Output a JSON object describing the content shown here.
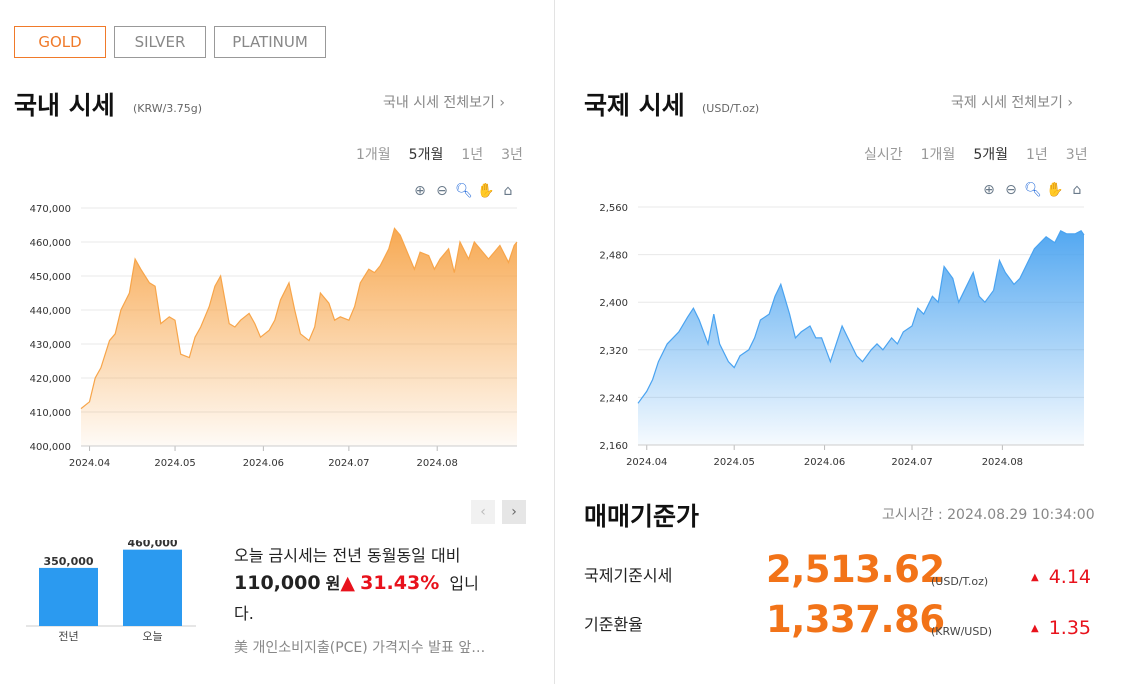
{
  "tabs": [
    {
      "label": "GOLD",
      "active": true
    },
    {
      "label": "SILVER",
      "active": false
    },
    {
      "label": "PLATINUM",
      "active": false
    }
  ],
  "domestic": {
    "title": "국내 시세",
    "unit": "(KRW/3.75g)",
    "more": "국내 시세 전체보기",
    "periods": [
      "1개월",
      "5개월",
      "1년",
      "3년"
    ],
    "active_period": "5개월",
    "tools": [
      "zoom-in-icon",
      "zoom-out-icon",
      "magnify-icon",
      "pan-hand-icon",
      "home-icon"
    ],
    "fill_color": "#f7a54a"
  },
  "international": {
    "title": "국제 시세",
    "unit": "(USD/T.oz)",
    "more": "국제 시세 전체보기",
    "periods": [
      "실시간",
      "1개월",
      "5개월",
      "1년",
      "3년"
    ],
    "active_period": "5개월",
    "tools": [
      "zoom-in-icon",
      "zoom-out-icon",
      "magnify-icon",
      "pan-hand-icon",
      "home-icon"
    ],
    "fill_color": "#4aa3f0"
  },
  "chart_data": [
    {
      "type": "area",
      "ylim": [
        400000,
        470000
      ],
      "yticks": [
        "400,000",
        "410,000",
        "420,000",
        "430,000",
        "440,000",
        "450,000",
        "460,000",
        "470,000"
      ],
      "xticks": [
        "2024.04",
        "2024.05",
        "2024.06",
        "2024.07",
        "2024.08"
      ],
      "x": [
        "2024.03.29",
        "2024.04.01",
        "2024.04.03",
        "2024.04.05",
        "2024.04.08",
        "2024.04.10",
        "2024.04.12",
        "2024.04.15",
        "2024.04.17",
        "2024.04.19",
        "2024.04.22",
        "2024.04.24",
        "2024.04.26",
        "2024.04.29",
        "2024.05.01",
        "2024.05.03",
        "2024.05.06",
        "2024.05.08",
        "2024.05.10",
        "2024.05.13",
        "2024.05.15",
        "2024.05.17",
        "2024.05.20",
        "2024.05.22",
        "2024.05.24",
        "2024.05.27",
        "2024.05.29",
        "2024.05.31",
        "2024.06.03",
        "2024.06.05",
        "2024.06.07",
        "2024.06.10",
        "2024.06.12",
        "2024.06.14",
        "2024.06.17",
        "2024.06.19",
        "2024.06.21",
        "2024.06.24",
        "2024.06.26",
        "2024.06.28",
        "2024.07.01",
        "2024.07.03",
        "2024.07.05",
        "2024.07.08",
        "2024.07.10",
        "2024.07.12",
        "2024.07.15",
        "2024.07.17",
        "2024.07.19",
        "2024.07.22",
        "2024.07.24",
        "2024.07.26",
        "2024.07.29",
        "2024.07.31",
        "2024.08.02",
        "2024.08.05",
        "2024.08.07",
        "2024.08.09",
        "2024.08.12",
        "2024.08.14",
        "2024.08.16",
        "2024.08.19",
        "2024.08.21",
        "2024.08.23",
        "2024.08.26",
        "2024.08.28",
        "2024.08.29"
      ],
      "values": [
        411000,
        413000,
        420000,
        423000,
        431000,
        433000,
        440000,
        445000,
        455000,
        452000,
        448000,
        447000,
        436000,
        438000,
        437000,
        427000,
        426000,
        432000,
        435000,
        441000,
        447000,
        450000,
        436000,
        435000,
        437000,
        439000,
        436000,
        432000,
        434000,
        437000,
        443000,
        448000,
        440000,
        433000,
        431000,
        435000,
        445000,
        442000,
        437000,
        438000,
        437000,
        441000,
        448000,
        452000,
        451000,
        453000,
        458000,
        464000,
        462000,
        456000,
        452000,
        457000,
        456000,
        452000,
        455000,
        458000,
        451000,
        460000,
        455000,
        460000,
        458000,
        455000,
        457000,
        459000,
        454000,
        459000,
        460000
      ],
      "fill_color": "#f7a54a"
    },
    {
      "type": "area",
      "ylim": [
        2160,
        2560
      ],
      "yticks": [
        "2,160",
        "2,240",
        "2,320",
        "2,400",
        "2,480",
        "2,560"
      ],
      "xticks": [
        "2024.04",
        "2024.05",
        "2024.06",
        "2024.07",
        "2024.08"
      ],
      "x": [
        "2024.03.29",
        "2024.04.01",
        "2024.04.03",
        "2024.04.05",
        "2024.04.08",
        "2024.04.10",
        "2024.04.12",
        "2024.04.15",
        "2024.04.17",
        "2024.04.19",
        "2024.04.22",
        "2024.04.24",
        "2024.04.26",
        "2024.04.29",
        "2024.05.01",
        "2024.05.03",
        "2024.05.06",
        "2024.05.08",
        "2024.05.10",
        "2024.05.13",
        "2024.05.15",
        "2024.05.17",
        "2024.05.20",
        "2024.05.22",
        "2024.05.24",
        "2024.05.27",
        "2024.05.29",
        "2024.05.31",
        "2024.06.03",
        "2024.06.05",
        "2024.06.07",
        "2024.06.10",
        "2024.06.12",
        "2024.06.14",
        "2024.06.17",
        "2024.06.19",
        "2024.06.21",
        "2024.06.24",
        "2024.06.26",
        "2024.06.28",
        "2024.07.01",
        "2024.07.03",
        "2024.07.05",
        "2024.07.08",
        "2024.07.10",
        "2024.07.12",
        "2024.07.15",
        "2024.07.17",
        "2024.07.19",
        "2024.07.22",
        "2024.07.24",
        "2024.07.26",
        "2024.07.29",
        "2024.07.31",
        "2024.08.02",
        "2024.08.05",
        "2024.08.07",
        "2024.08.09",
        "2024.08.12",
        "2024.08.14",
        "2024.08.16",
        "2024.08.19",
        "2024.08.21",
        "2024.08.23",
        "2024.08.26",
        "2024.08.28",
        "2024.08.29"
      ],
      "values": [
        2230,
        2250,
        2270,
        2300,
        2330,
        2340,
        2350,
        2375,
        2390,
        2370,
        2330,
        2380,
        2330,
        2300,
        2290,
        2310,
        2320,
        2340,
        2370,
        2380,
        2410,
        2430,
        2380,
        2340,
        2350,
        2360,
        2340,
        2340,
        2300,
        2330,
        2360,
        2330,
        2310,
        2300,
        2320,
        2330,
        2320,
        2340,
        2330,
        2350,
        2360,
        2390,
        2380,
        2410,
        2400,
        2460,
        2440,
        2400,
        2420,
        2450,
        2410,
        2400,
        2420,
        2470,
        2450,
        2430,
        2440,
        2460,
        2490,
        2500,
        2510,
        2500,
        2520,
        2515,
        2515,
        2520,
        2513
      ],
      "fill_color": "#4aa3f0"
    },
    {
      "type": "bar",
      "categories": [
        "전년",
        "오늘"
      ],
      "values": [
        350000,
        460000
      ],
      "value_labels": [
        "350,000",
        "460,000"
      ],
      "ylim": [
        0,
        470000
      ],
      "color": "#2b9af0"
    }
  ],
  "compare": {
    "line1": "오늘 금시세는 전년 동월동일 대비",
    "amount": "110,000",
    "won": "원",
    "arrow": "▲",
    "pct": "31.43%",
    "suffix": "입니",
    "suffix2": "다.",
    "news": "美 개인소비지출(PCE) 가격지수 발표 앞…"
  },
  "reference": {
    "title": "매매기준가",
    "time": "고시시간 : 2024.08.29 10:34:00",
    "rows": [
      {
        "label": "국제기준시세",
        "value": "2,513.62",
        "unit": "(USD/T.oz)",
        "arrow": "▲",
        "change": "4.14"
      },
      {
        "label": "기준환율",
        "value": "1,337.86",
        "unit": "(KRW/USD)",
        "arrow": "▲",
        "change": "1.35"
      }
    ]
  }
}
